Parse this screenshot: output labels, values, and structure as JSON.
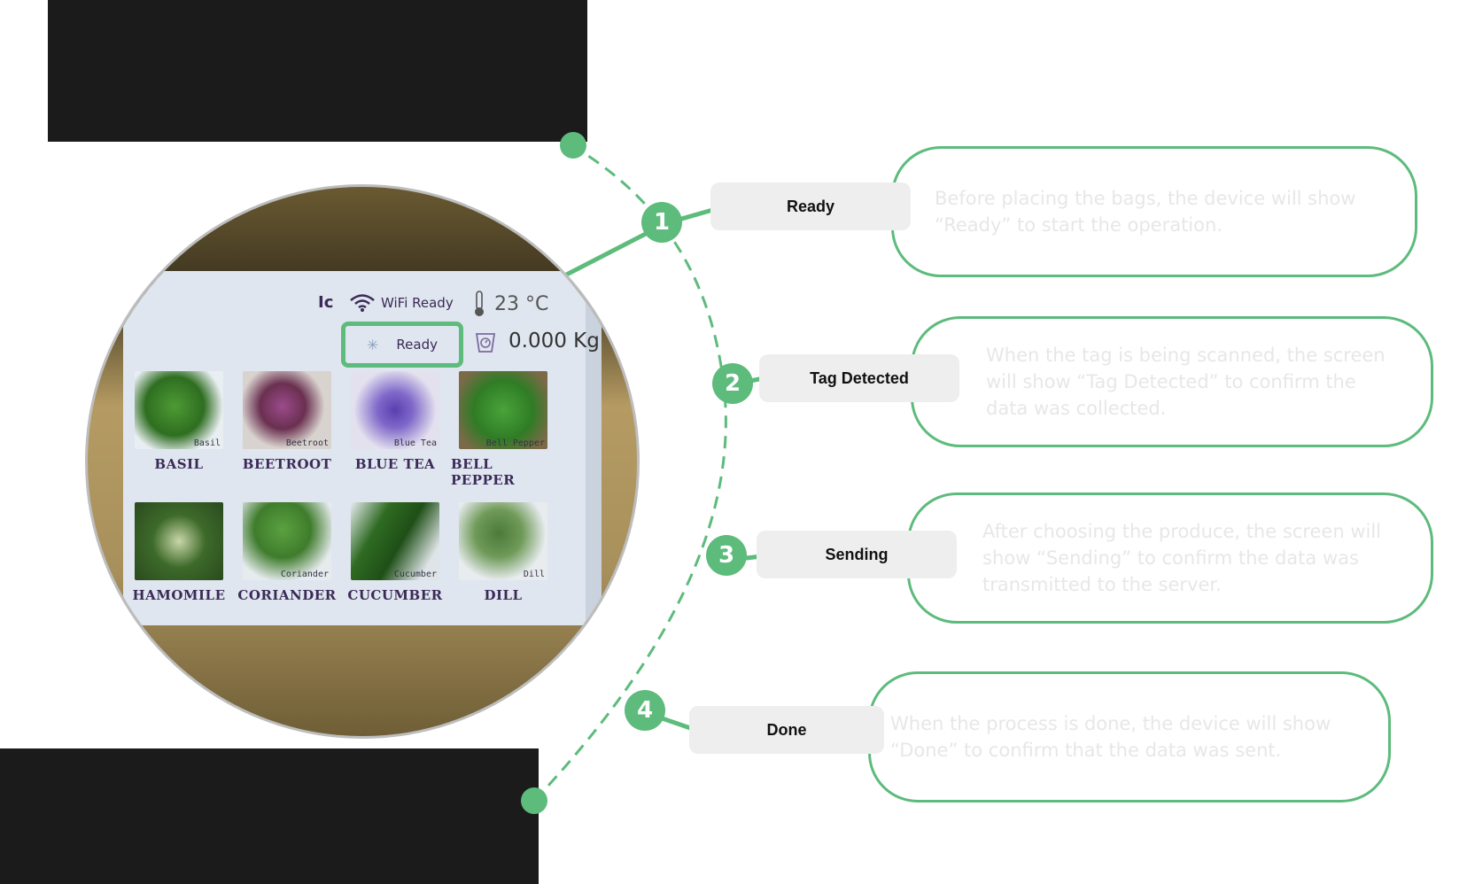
{
  "colors": {
    "accent": "#5dbb7c",
    "label_bg": "#eeeeee",
    "bar": "#1b1b1b",
    "desc_text": "#e7e7e7"
  },
  "device": {
    "status_ic": "Ic",
    "wifi_label": "WiFi Ready",
    "temperature": "23 °C",
    "ready_label": "Ready",
    "weight": "0.000 Kg",
    "tiles": [
      {
        "name": "BASIL",
        "caption": "Basil"
      },
      {
        "name": "BEETROOT",
        "caption": "Beetroot"
      },
      {
        "name": "BLUE TEA",
        "caption": "Blue Tea"
      },
      {
        "name": "BELL PEPPER",
        "caption": "Bell Pepper"
      },
      {
        "name": "HAMOMILE",
        "caption": ""
      },
      {
        "name": "CORIANDER",
        "caption": "Coriander"
      },
      {
        "name": "CUCUMBER",
        "caption": "Cucumber"
      },
      {
        "name": "DILL",
        "caption": "Dill"
      }
    ]
  },
  "steps": [
    {
      "number": "1",
      "label": "Ready",
      "description": "Before placing the bags, the device will show “Ready” to start the operation."
    },
    {
      "number": "2",
      "label": "Tag Detected",
      "description": "When the tag is being scanned, the screen will show “Tag Detected” to confirm the data was collected."
    },
    {
      "number": "3",
      "label": "Sending",
      "description": "After choosing the produce, the screen will show “Sending” to confirm the data was transmitted to the server."
    },
    {
      "number": "4",
      "label": "Done",
      "description": "When the process is done, the device will show “Done” to confirm that the data was sent."
    }
  ]
}
